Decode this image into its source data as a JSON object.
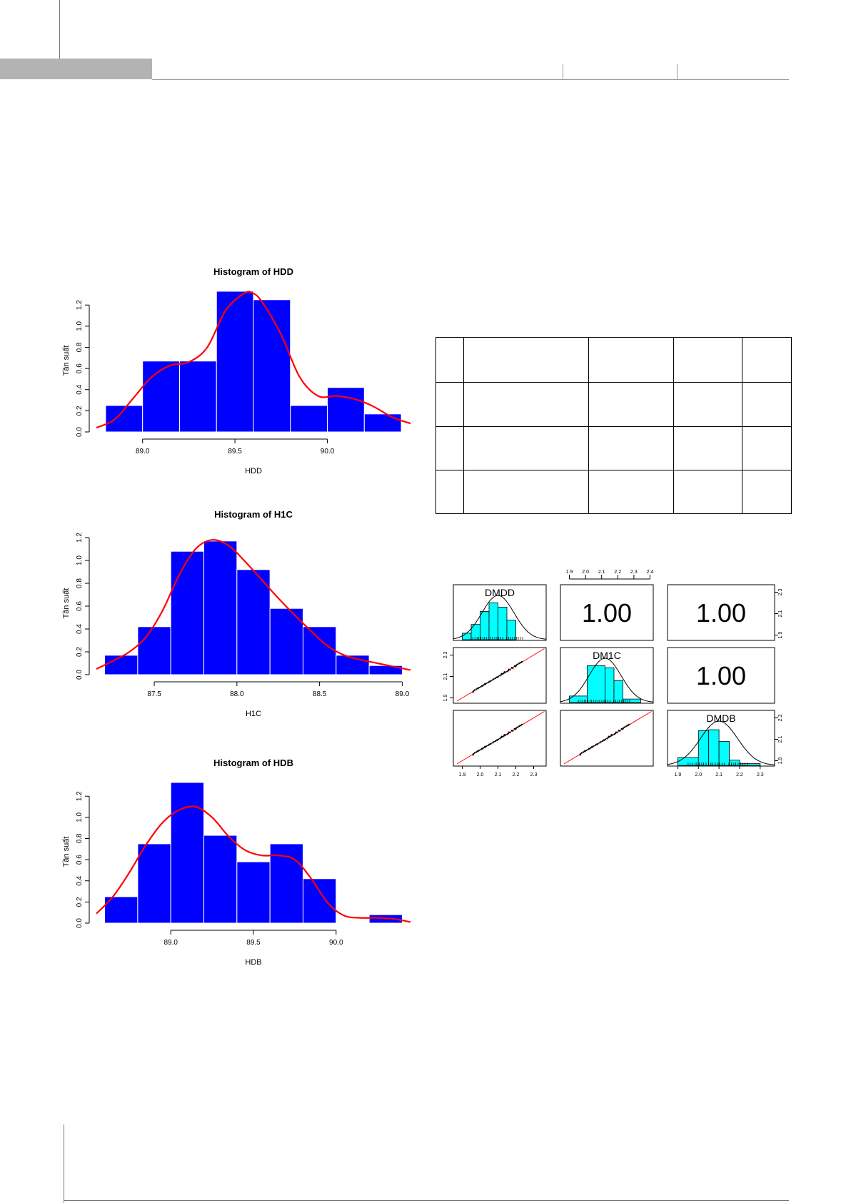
{
  "chart_data": [
    {
      "type": "bar",
      "title": "Histogram of HDD",
      "xlabel": "HDD",
      "ylabel": "Tần suất",
      "bin_edges": [
        88.8,
        89.0,
        89.2,
        89.4,
        89.6,
        89.8,
        90.0,
        90.2,
        90.4
      ],
      "values": [
        0.25,
        0.67,
        0.67,
        1.33,
        1.25,
        0.25,
        0.42,
        0.17
      ],
      "xlim": [
        88.75,
        90.45
      ],
      "ylim": [
        0,
        1.35
      ],
      "xticks": [
        "89.0",
        "89.5",
        "90.0"
      ],
      "yticks": [
        "0.0",
        "0.2",
        "0.4",
        "0.6",
        "0.8",
        "1.0",
        "1.2"
      ],
      "density_curve": {
        "x": [
          88.75,
          88.85,
          88.95,
          89.05,
          89.15,
          89.25,
          89.35,
          89.45,
          89.55,
          89.6,
          89.65,
          89.75,
          89.85,
          89.95,
          90.05,
          90.15,
          90.25,
          90.35,
          90.45
        ],
        "y": [
          0.04,
          0.12,
          0.32,
          0.52,
          0.63,
          0.66,
          0.8,
          1.15,
          1.31,
          1.31,
          1.22,
          0.92,
          0.52,
          0.34,
          0.34,
          0.31,
          0.24,
          0.14,
          0.08
        ]
      },
      "colors": {
        "bar": "#0000ff",
        "curve": "#ff0000"
      }
    },
    {
      "type": "bar",
      "title": "Histogram of H1C",
      "xlabel": "H1C",
      "ylabel": "Tần suất",
      "bin_edges": [
        87.2,
        87.4,
        87.6,
        87.8,
        88.0,
        88.2,
        88.4,
        88.6,
        88.8,
        89.0
      ],
      "values": [
        0.17,
        0.42,
        1.08,
        1.17,
        0.92,
        0.58,
        0.42,
        0.17,
        0.08
      ],
      "xlim": [
        87.15,
        89.05
      ],
      "ylim": [
        0,
        1.25
      ],
      "xticks": [
        "87.5",
        "88.0",
        "88.5",
        "89.0"
      ],
      "yticks": [
        "0.0",
        "0.2",
        "0.4",
        "0.6",
        "0.8",
        "1.0",
        "1.2"
      ],
      "density_curve": {
        "x": [
          87.15,
          87.25,
          87.35,
          87.45,
          87.55,
          87.65,
          87.75,
          87.85,
          87.95,
          88.05,
          88.15,
          88.25,
          88.35,
          88.45,
          88.55,
          88.65,
          88.75,
          88.85,
          88.95,
          89.05
        ],
        "y": [
          0.05,
          0.12,
          0.2,
          0.33,
          0.56,
          0.87,
          1.1,
          1.18,
          1.13,
          0.99,
          0.83,
          0.67,
          0.52,
          0.38,
          0.25,
          0.17,
          0.13,
          0.1,
          0.07,
          0.04
        ]
      },
      "colors": {
        "bar": "#0000ff",
        "curve": "#ff0000"
      }
    },
    {
      "type": "bar",
      "title": "Histogram of HDB",
      "xlabel": "HDB",
      "ylabel": "Tần suất",
      "bin_edges": [
        88.6,
        88.8,
        89.0,
        89.2,
        89.4,
        89.6,
        89.8,
        90.0,
        90.2,
        90.4
      ],
      "values": [
        0.25,
        0.75,
        1.33,
        0.83,
        0.58,
        0.75,
        0.42,
        0.0,
        0.08
      ],
      "xlim": [
        88.55,
        90.45
      ],
      "ylim": [
        0,
        1.35
      ],
      "xticks": [
        "89.0",
        "89.5",
        "90.0"
      ],
      "yticks": [
        "0.0",
        "0.2",
        "0.4",
        "0.6",
        "0.8",
        "1.0",
        "1.2"
      ],
      "density_curve": {
        "x": [
          88.55,
          88.65,
          88.75,
          88.85,
          88.95,
          89.05,
          89.15,
          89.25,
          89.35,
          89.45,
          89.55,
          89.65,
          89.75,
          89.85,
          89.95,
          90.05,
          90.15,
          90.25,
          90.35,
          90.45
        ],
        "y": [
          0.09,
          0.25,
          0.48,
          0.74,
          0.95,
          1.07,
          1.1,
          1.0,
          0.82,
          0.69,
          0.64,
          0.64,
          0.6,
          0.42,
          0.19,
          0.07,
          0.05,
          0.05,
          0.04,
          0.01
        ]
      },
      "colors": {
        "bar": "#0000ff",
        "curve": "#ff0000"
      }
    },
    {
      "type": "scatter",
      "variables": [
        "DMDD",
        "DM1C",
        "DMDB"
      ],
      "correlations": [
        "1.00",
        "1.00",
        "1.00"
      ],
      "axis_ticks": [
        "1.9",
        "2.0",
        "2.1",
        "2.2",
        "2.3"
      ],
      "top_axis_ticks": [
        "1.9",
        "2.0",
        "2.1",
        "2.2",
        "2.3",
        "2.4"
      ],
      "right_axis_ticks": [
        "1.9",
        "2.1",
        "2.3"
      ],
      "diag_histograms": [
        {
          "bin_edges": [
            1.9,
            1.95,
            2.0,
            2.05,
            2.1,
            2.15,
            2.2
          ],
          "values": [
            0.15,
            0.35,
            0.65,
            0.85,
            0.75,
            0.45
          ]
        },
        {
          "bin_edges": [
            1.9,
            2.0,
            2.1,
            2.15,
            2.2,
            2.3
          ],
          "values": [
            0.15,
            0.85,
            0.8,
            0.5,
            0.08
          ]
        },
        {
          "bin_edges": [
            1.9,
            2.0,
            2.05,
            2.1,
            2.15,
            2.2,
            2.3
          ],
          "values": [
            0.18,
            0.8,
            0.82,
            0.55,
            0.12,
            0.04
          ]
        }
      ],
      "colors": {
        "hist": "#00ffff",
        "points": "#000000",
        "fit_line": "#ff0000"
      }
    }
  ]
}
